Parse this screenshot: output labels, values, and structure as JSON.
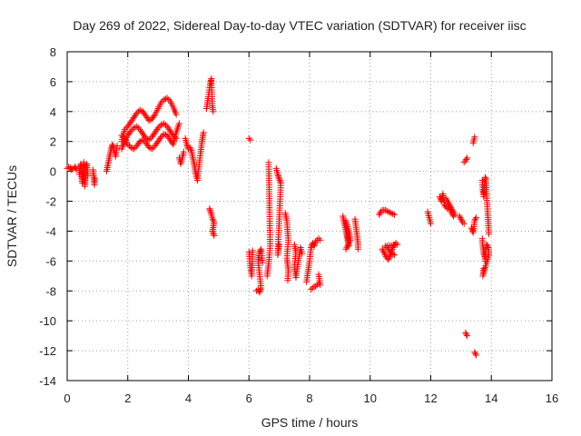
{
  "chart_data": {
    "type": "scatter",
    "title": "Day 269 of 2022, Sidereal Day-to-day VTEC variation (SDTVAR) for receiver iisc",
    "xlabel": "GPS time / hours",
    "ylabel": "SDTVAR / TECUs",
    "xlim": [
      0,
      16
    ],
    "ylim": [
      -14,
      8
    ],
    "xticks": [
      0,
      2,
      4,
      6,
      8,
      10,
      12,
      14,
      16
    ],
    "yticks": [
      -14,
      -12,
      -10,
      -8,
      -6,
      -4,
      -2,
      0,
      2,
      4,
      6,
      8
    ],
    "grid": true,
    "marker": "+",
    "color": "#ff0000",
    "series": [
      {
        "segments": [
          [
            [
              0.0,
              0.2
            ],
            [
              0.05,
              0.3
            ],
            [
              0.1,
              0.25
            ],
            [
              0.15,
              0.1
            ],
            [
              0.2,
              0.2
            ],
            [
              0.25,
              0.3
            ],
            [
              0.3,
              0.15
            ]
          ],
          [
            [
              0.4,
              -0.2
            ],
            [
              0.42,
              0.2
            ],
            [
              0.45,
              0.5
            ],
            [
              0.48,
              -0.5
            ],
            [
              0.5,
              -0.8
            ],
            [
              0.52,
              0.0
            ],
            [
              0.55,
              0.6
            ],
            [
              0.58,
              -1.0
            ],
            [
              0.6,
              -0.6
            ],
            [
              0.62,
              0.4
            ],
            [
              0.65,
              0.5
            ],
            [
              0.68,
              -0.3
            ]
          ],
          [
            [
              0.85,
              0.1
            ],
            [
              0.88,
              -0.4
            ],
            [
              0.9,
              -0.9
            ],
            [
              0.92,
              -0.5
            ]
          ],
          [
            [
              1.3,
              0.0
            ],
            [
              1.35,
              0.5
            ],
            [
              1.4,
              1.0
            ],
            [
              1.45,
              1.5
            ],
            [
              1.5,
              1.8
            ],
            [
              1.55,
              1.4
            ],
            [
              1.6,
              1.0
            ],
            [
              1.65,
              1.7
            ]
          ],
          [
            [
              1.8,
              2.0
            ],
            [
              1.9,
              2.8
            ],
            [
              2.0,
              3.0
            ],
            [
              2.1,
              3.3
            ],
            [
              2.2,
              3.6
            ],
            [
              2.3,
              3.9
            ],
            [
              2.4,
              4.1
            ],
            [
              2.5,
              4.0
            ],
            [
              2.6,
              3.7
            ],
            [
              2.7,
              3.4
            ],
            [
              2.8,
              3.5
            ],
            [
              2.9,
              3.8
            ],
            [
              3.0,
              4.2
            ],
            [
              3.1,
              4.6
            ],
            [
              3.2,
              4.8
            ],
            [
              3.3,
              4.9
            ],
            [
              3.4,
              4.7
            ],
            [
              3.5,
              4.3
            ],
            [
              3.6,
              3.8
            ]
          ],
          [
            [
              1.8,
              1.5
            ],
            [
              1.9,
              2.0
            ],
            [
              2.0,
              2.4
            ],
            [
              2.1,
              2.7
            ],
            [
              2.2,
              2.9
            ],
            [
              2.3,
              3.0
            ],
            [
              2.4,
              2.8
            ],
            [
              2.5,
              2.5
            ],
            [
              2.6,
              2.2
            ],
            [
              2.7,
              2.1
            ],
            [
              2.8,
              2.3
            ],
            [
              2.9,
              2.6
            ],
            [
              3.0,
              2.9
            ],
            [
              3.1,
              3.1
            ],
            [
              3.2,
              3.2
            ],
            [
              3.3,
              3.0
            ],
            [
              3.4,
              2.7
            ],
            [
              3.5,
              2.4
            ],
            [
              3.6,
              2.2
            ]
          ],
          [
            [
              1.8,
              2.4
            ],
            [
              1.9,
              2.2
            ],
            [
              2.0,
              1.8
            ],
            [
              2.1,
              1.6
            ],
            [
              2.2,
              1.5
            ],
            [
              2.3,
              1.7
            ],
            [
              2.4,
              2.0
            ],
            [
              2.5,
              2.1
            ],
            [
              2.6,
              1.9
            ],
            [
              2.7,
              1.6
            ],
            [
              2.8,
              1.5
            ],
            [
              2.9,
              1.7
            ],
            [
              3.0,
              2.0
            ],
            [
              3.1,
              2.3
            ],
            [
              3.2,
              2.5
            ],
            [
              3.3,
              2.4
            ],
            [
              3.4,
              2.1
            ],
            [
              3.5,
              1.8
            ],
            [
              3.6,
              2.6
            ],
            [
              3.7,
              3.2
            ]
          ],
          [
            [
              3.7,
              0.9
            ],
            [
              3.75,
              0.5
            ],
            [
              3.8,
              0.9
            ],
            [
              3.85,
              1.3
            ]
          ],
          [
            [
              3.9,
              2.2
            ],
            [
              3.95,
              1.8
            ],
            [
              4.0,
              1.5
            ],
            [
              4.05,
              1.6
            ],
            [
              4.1,
              1.4
            ],
            [
              4.15,
              0.9
            ],
            [
              4.2,
              0.4
            ],
            [
              4.25,
              -0.2
            ],
            [
              4.3,
              -0.6
            ],
            [
              4.35,
              0.3
            ],
            [
              4.4,
              1.2
            ],
            [
              4.45,
              2.0
            ],
            [
              4.5,
              2.6
            ]
          ],
          [
            [
              4.6,
              4.2
            ],
            [
              4.63,
              4.6
            ],
            [
              4.66,
              5.0
            ],
            [
              4.7,
              5.6
            ],
            [
              4.73,
              6.0
            ],
            [
              4.76,
              6.2
            ],
            [
              4.79,
              4.4
            ],
            [
              4.82,
              4.0
            ]
          ],
          [
            [
              4.7,
              -2.5
            ],
            [
              4.75,
              -2.8
            ],
            [
              4.8,
              -3.2
            ],
            [
              4.85,
              -3.4
            ],
            [
              4.8,
              -4.0
            ],
            [
              4.85,
              -4.3
            ]
          ],
          [
            [
              6.0,
              2.2
            ],
            [
              6.05,
              2.1
            ]
          ],
          [
            [
              6.0,
              -5.4
            ],
            [
              6.03,
              -6.0
            ],
            [
              6.06,
              -6.6
            ],
            [
              6.09,
              -7.0
            ],
            [
              6.12,
              -5.3
            ]
          ],
          [
            [
              6.25,
              -8.0
            ],
            [
              6.3,
              -7.9
            ],
            [
              6.35,
              -8.1
            ],
            [
              6.4,
              -7.8
            ],
            [
              6.3,
              -6.0
            ],
            [
              6.35,
              -5.4
            ],
            [
              6.4,
              -5.2
            ],
            [
              6.45,
              -6.1
            ]
          ],
          [
            [
              6.6,
              -7.0
            ],
            [
              6.65,
              -6.2
            ],
            [
              6.7,
              -5.0
            ],
            [
              6.65,
              0.6
            ]
          ],
          [
            [
              6.9,
              0.2
            ],
            [
              6.95,
              -0.2
            ],
            [
              7.0,
              -0.5
            ],
            [
              7.05,
              -0.8
            ],
            [
              6.95,
              -5.6
            ],
            [
              7.0,
              -4.9
            ]
          ],
          [
            [
              7.2,
              -2.8
            ],
            [
              7.25,
              -3.3
            ],
            [
              7.3,
              -4.6
            ],
            [
              7.25,
              -5.8
            ],
            [
              7.3,
              -6.6
            ],
            [
              7.28,
              -7.3
            ]
          ],
          [
            [
              7.5,
              -4.9
            ],
            [
              7.55,
              -5.4
            ],
            [
              7.5,
              -6.4
            ],
            [
              7.55,
              -7.1
            ],
            [
              7.7,
              -5.1
            ],
            [
              7.75,
              -5.5
            ]
          ],
          [
            [
              7.9,
              -7.4
            ],
            [
              8.0,
              -6.0
            ],
            [
              8.05,
              -5.1
            ],
            [
              8.1,
              -4.8
            ],
            [
              8.15,
              -5.0
            ],
            [
              8.2,
              -4.7
            ],
            [
              8.25,
              -4.6
            ],
            [
              8.3,
              -4.5
            ],
            [
              8.35,
              -4.6
            ]
          ],
          [
            [
              8.05,
              -7.9
            ],
            [
              8.1,
              -7.8
            ],
            [
              8.15,
              -7.7
            ],
            [
              8.2,
              -7.7
            ],
            [
              8.25,
              -7.6
            ],
            [
              8.3,
              -7.5
            ],
            [
              8.35,
              -7.6
            ],
            [
              8.3,
              -6.9
            ]
          ],
          [
            [
              9.1,
              -3.0
            ],
            [
              9.15,
              -3.5
            ],
            [
              9.2,
              -4.0
            ],
            [
              9.25,
              -4.5
            ],
            [
              9.3,
              -5.0
            ],
            [
              9.2,
              -3.3
            ],
            [
              9.25,
              -3.7
            ],
            [
              9.3,
              -4.1
            ],
            [
              9.35,
              -4.6
            ],
            [
              9.2,
              -5.2
            ]
          ],
          [
            [
              9.5,
              -3.2
            ],
            [
              9.55,
              -4.0
            ],
            [
              9.6,
              -4.8
            ],
            [
              9.6,
              -5.2
            ]
          ],
          [
            [
              10.3,
              -2.9
            ],
            [
              10.35,
              -2.7
            ],
            [
              10.4,
              -2.6
            ],
            [
              10.5,
              -2.6
            ],
            [
              10.6,
              -2.7
            ],
            [
              10.7,
              -2.8
            ],
            [
              10.8,
              -2.9
            ]
          ],
          [
            [
              10.4,
              -5.2
            ],
            [
              10.45,
              -5.4
            ],
            [
              10.5,
              -5.6
            ],
            [
              10.55,
              -5.8
            ],
            [
              10.6,
              -5.9
            ],
            [
              10.65,
              -5.7
            ],
            [
              10.7,
              -5.4
            ],
            [
              10.75,
              -5.1
            ],
            [
              10.8,
              -4.9
            ],
            [
              10.85,
              -4.8
            ],
            [
              10.9,
              -4.9
            ],
            [
              10.5,
              -5.0
            ],
            [
              10.6,
              -5.2
            ],
            [
              10.7,
              -5.5
            ],
            [
              10.8,
              -5.6
            ]
          ],
          [
            [
              11.9,
              -2.7
            ],
            [
              11.95,
              -3.1
            ],
            [
              12.0,
              -3.5
            ]
          ],
          [
            [
              12.3,
              -1.7
            ],
            [
              12.35,
              -2.0
            ],
            [
              12.4,
              -1.5
            ],
            [
              12.45,
              -2.2
            ],
            [
              12.5,
              -2.4
            ],
            [
              12.55,
              -2.5
            ],
            [
              12.6,
              -2.3
            ],
            [
              12.65,
              -2.6
            ],
            [
              12.7,
              -2.8
            ],
            [
              12.75,
              -3.0
            ],
            [
              12.8,
              -2.9
            ],
            [
              12.5,
              -1.8
            ]
          ],
          [
            [
              12.95,
              -3.0
            ],
            [
              13.0,
              -3.2
            ],
            [
              13.05,
              -3.4
            ],
            [
              13.1,
              -3.5
            ]
          ],
          [
            [
              13.1,
              0.6
            ],
            [
              13.15,
              0.7
            ],
            [
              13.2,
              0.9
            ]
          ],
          [
            [
              13.15,
              -10.8
            ],
            [
              13.2,
              -11.0
            ]
          ],
          [
            [
              13.35,
              -3.8
            ],
            [
              13.4,
              -4.1
            ],
            [
              13.45,
              -3.3
            ],
            [
              13.5,
              -3.1
            ]
          ],
          [
            [
              13.4,
              1.9
            ],
            [
              13.45,
              2.3
            ]
          ],
          [
            [
              13.45,
              -12.1
            ],
            [
              13.5,
              -12.3
            ]
          ],
          [
            [
              13.7,
              -0.6
            ],
            [
              13.72,
              -1.2
            ],
            [
              13.75,
              -1.7
            ],
            [
              13.78,
              -0.8
            ],
            [
              13.8,
              -0.4
            ],
            [
              13.82,
              -0.5
            ],
            [
              13.85,
              -1.8
            ],
            [
              13.88,
              -2.8
            ],
            [
              13.9,
              -3.5
            ],
            [
              13.92,
              -4.2
            ]
          ],
          [
            [
              13.7,
              -4.5
            ],
            [
              13.72,
              -5.0
            ],
            [
              13.75,
              -5.5
            ],
            [
              13.78,
              -5.7
            ],
            [
              13.8,
              -6.0
            ],
            [
              13.82,
              -5.2
            ],
            [
              13.85,
              -4.9
            ],
            [
              13.9,
              -5.1
            ],
            [
              13.92,
              -5.6
            ],
            [
              13.72,
              -7.0
            ],
            [
              13.75,
              -6.5
            ]
          ]
        ]
      }
    ]
  }
}
